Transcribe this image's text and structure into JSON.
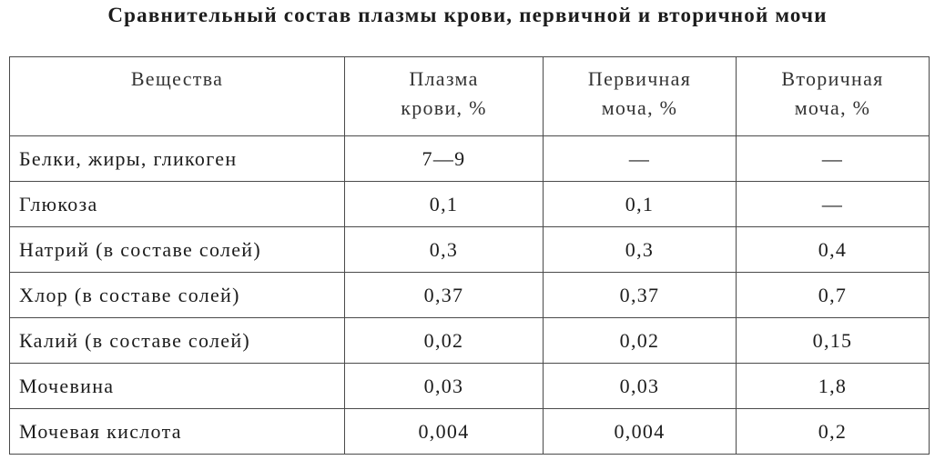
{
  "title": "Сравнительный состав плазмы крови, первичной и вторичной мочи",
  "table": {
    "header": [
      [
        "Вещества"
      ],
      [
        "Плазма",
        "крови, %"
      ],
      [
        "Первичная",
        "моча, %"
      ],
      [
        "Вторичная",
        "моча, %"
      ]
    ],
    "rows": [
      [
        "Белки, жиры, гликоген",
        "7—9",
        "—",
        "—"
      ],
      [
        "Глюкоза",
        "0,1",
        "0,1",
        "—"
      ],
      [
        "Натрий (в составе солей)",
        "0,3",
        "0,3",
        "0,4"
      ],
      [
        "Хлор (в составе солей)",
        "0,37",
        "0,37",
        "0,7"
      ],
      [
        "Калий (в составе солей)",
        "0,02",
        "0,02",
        "0,15"
      ],
      [
        "Мочевина",
        "0,03",
        "0,03",
        "1,8"
      ],
      [
        "Мочевая кислота",
        "0,004",
        "0,004",
        "0,2"
      ]
    ]
  }
}
